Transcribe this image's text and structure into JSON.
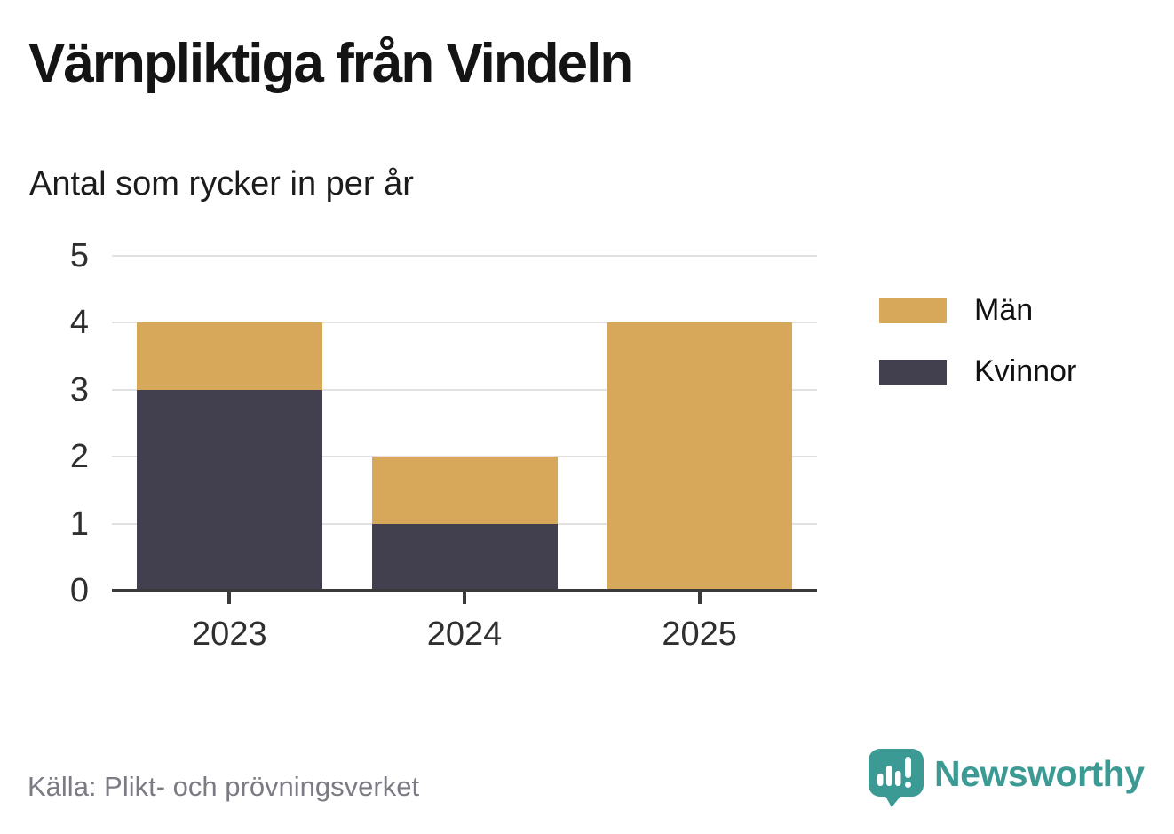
{
  "chart_data": {
    "type": "bar",
    "stacked": true,
    "title": "Värnpliktiga från Vindeln",
    "subtitle": "Antal som rycker in per år",
    "categories": [
      "2023",
      "2024",
      "2025"
    ],
    "series": [
      {
        "name": "Män",
        "color": "#d7a85a",
        "values": [
          1,
          1,
          4
        ]
      },
      {
        "name": "Kvinnor",
        "color": "#423f4e",
        "values": [
          3,
          1,
          0
        ]
      }
    ],
    "stack_order_bottom_to_top": [
      "Kvinnor",
      "Män"
    ],
    "ylim": [
      0,
      5
    ],
    "yticks": [
      0,
      1,
      2,
      3,
      4,
      5
    ],
    "grid": true,
    "legend_position": "right",
    "source": "Källa: Plikt- och prövningsverket"
  },
  "footer": {
    "brand_name": "Newsworthy",
    "brand_color": "#3b9b94"
  },
  "colors": {
    "axis_line": "#3a3a3a",
    "gridline": "#e1e1e1",
    "tick_label": "#2f2f2f",
    "title_text": "#141414",
    "source_text": "#7b7b84"
  }
}
